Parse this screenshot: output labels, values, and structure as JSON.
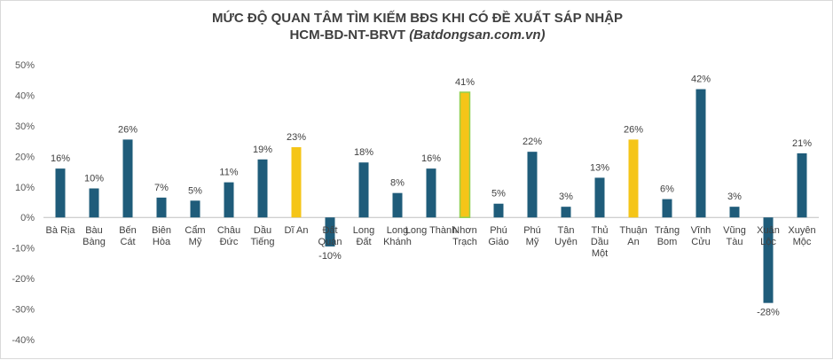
{
  "chart_data": {
    "type": "bar",
    "title": "MỨC ĐỘ QUAN TÂM TÌM KIẾM BĐS KHI CÓ ĐỀ XUẤT SÁP NHẬP",
    "subtitle_main": "HCM-BD-NT-BRVT",
    "subtitle_source": "(Batdongsan.com.vn)",
    "xlabel": "",
    "ylabel": "",
    "ylim": [
      -0.4,
      0.5
    ],
    "yticks": [
      "-40%",
      "-30%",
      "-20%",
      "-10%",
      "0%",
      "10%",
      "20%",
      "30%",
      "40%",
      "50%"
    ],
    "ytick_values": [
      -0.4,
      -0.3,
      -0.2,
      -0.1,
      0,
      0.1,
      0.2,
      0.3,
      0.4,
      0.5
    ],
    "grid": false,
    "legend": "none",
    "colors": {
      "default": "#1f5c7a",
      "highlight": "#f5c518",
      "highlight_outline": "#92d050",
      "axis": "#bfbfbf"
    },
    "categories": [
      [
        "Bà Rịa"
      ],
      [
        "Bàu",
        "Bàng"
      ],
      [
        "Bến",
        "Cát"
      ],
      [
        "Biên",
        "Hòa"
      ],
      [
        "Cẩm",
        "Mỹ"
      ],
      [
        "Châu",
        "Đức"
      ],
      [
        "Dầu",
        "Tiếng"
      ],
      [
        "Dĩ An"
      ],
      [
        "Đất",
        "Quán"
      ],
      [
        "Long",
        "Đất"
      ],
      [
        "Long",
        "Khánh"
      ],
      [
        "Long Thành"
      ],
      [
        "Nhơn",
        "Trạch"
      ],
      [
        "Phú",
        "Giáo"
      ],
      [
        "Phú",
        "Mỹ"
      ],
      [
        "Tân",
        "Uyên"
      ],
      [
        "Thủ",
        "Dầu",
        "Một"
      ],
      [
        "Thuận",
        "An"
      ],
      [
        "Trảng",
        "Bom"
      ],
      [
        "Vĩnh",
        "Cửu"
      ],
      [
        "Vũng",
        "Tàu"
      ],
      [
        "Xuân",
        "Lộc"
      ],
      [
        "Xuyên",
        "Mộc"
      ]
    ],
    "values": [
      0.16,
      0.095,
      0.255,
      0.065,
      0.055,
      0.115,
      0.19,
      0.23,
      -0.095,
      0.18,
      0.08,
      0.16,
      0.41,
      0.045,
      0.215,
      0.035,
      0.13,
      0.255,
      0.06,
      0.42,
      0.035,
      -0.28,
      0.21
    ],
    "data_labels": [
      "16%",
      "10%",
      "26%",
      "7%",
      "5%",
      "11%",
      "19%",
      "23%",
      "-10%",
      "18%",
      "8%",
      "16%",
      "41%",
      "5%",
      "22%",
      "3%",
      "13%",
      "26%",
      "6%",
      "42%",
      "3%",
      "-28%",
      "21%"
    ],
    "highlight": [
      false,
      false,
      false,
      false,
      false,
      false,
      false,
      true,
      false,
      false,
      false,
      false,
      true,
      false,
      false,
      false,
      false,
      true,
      false,
      false,
      false,
      false,
      false
    ],
    "outlined": [
      false,
      false,
      false,
      false,
      false,
      false,
      false,
      false,
      false,
      false,
      false,
      false,
      true,
      false,
      false,
      false,
      false,
      false,
      false,
      false,
      false,
      false,
      false
    ]
  }
}
